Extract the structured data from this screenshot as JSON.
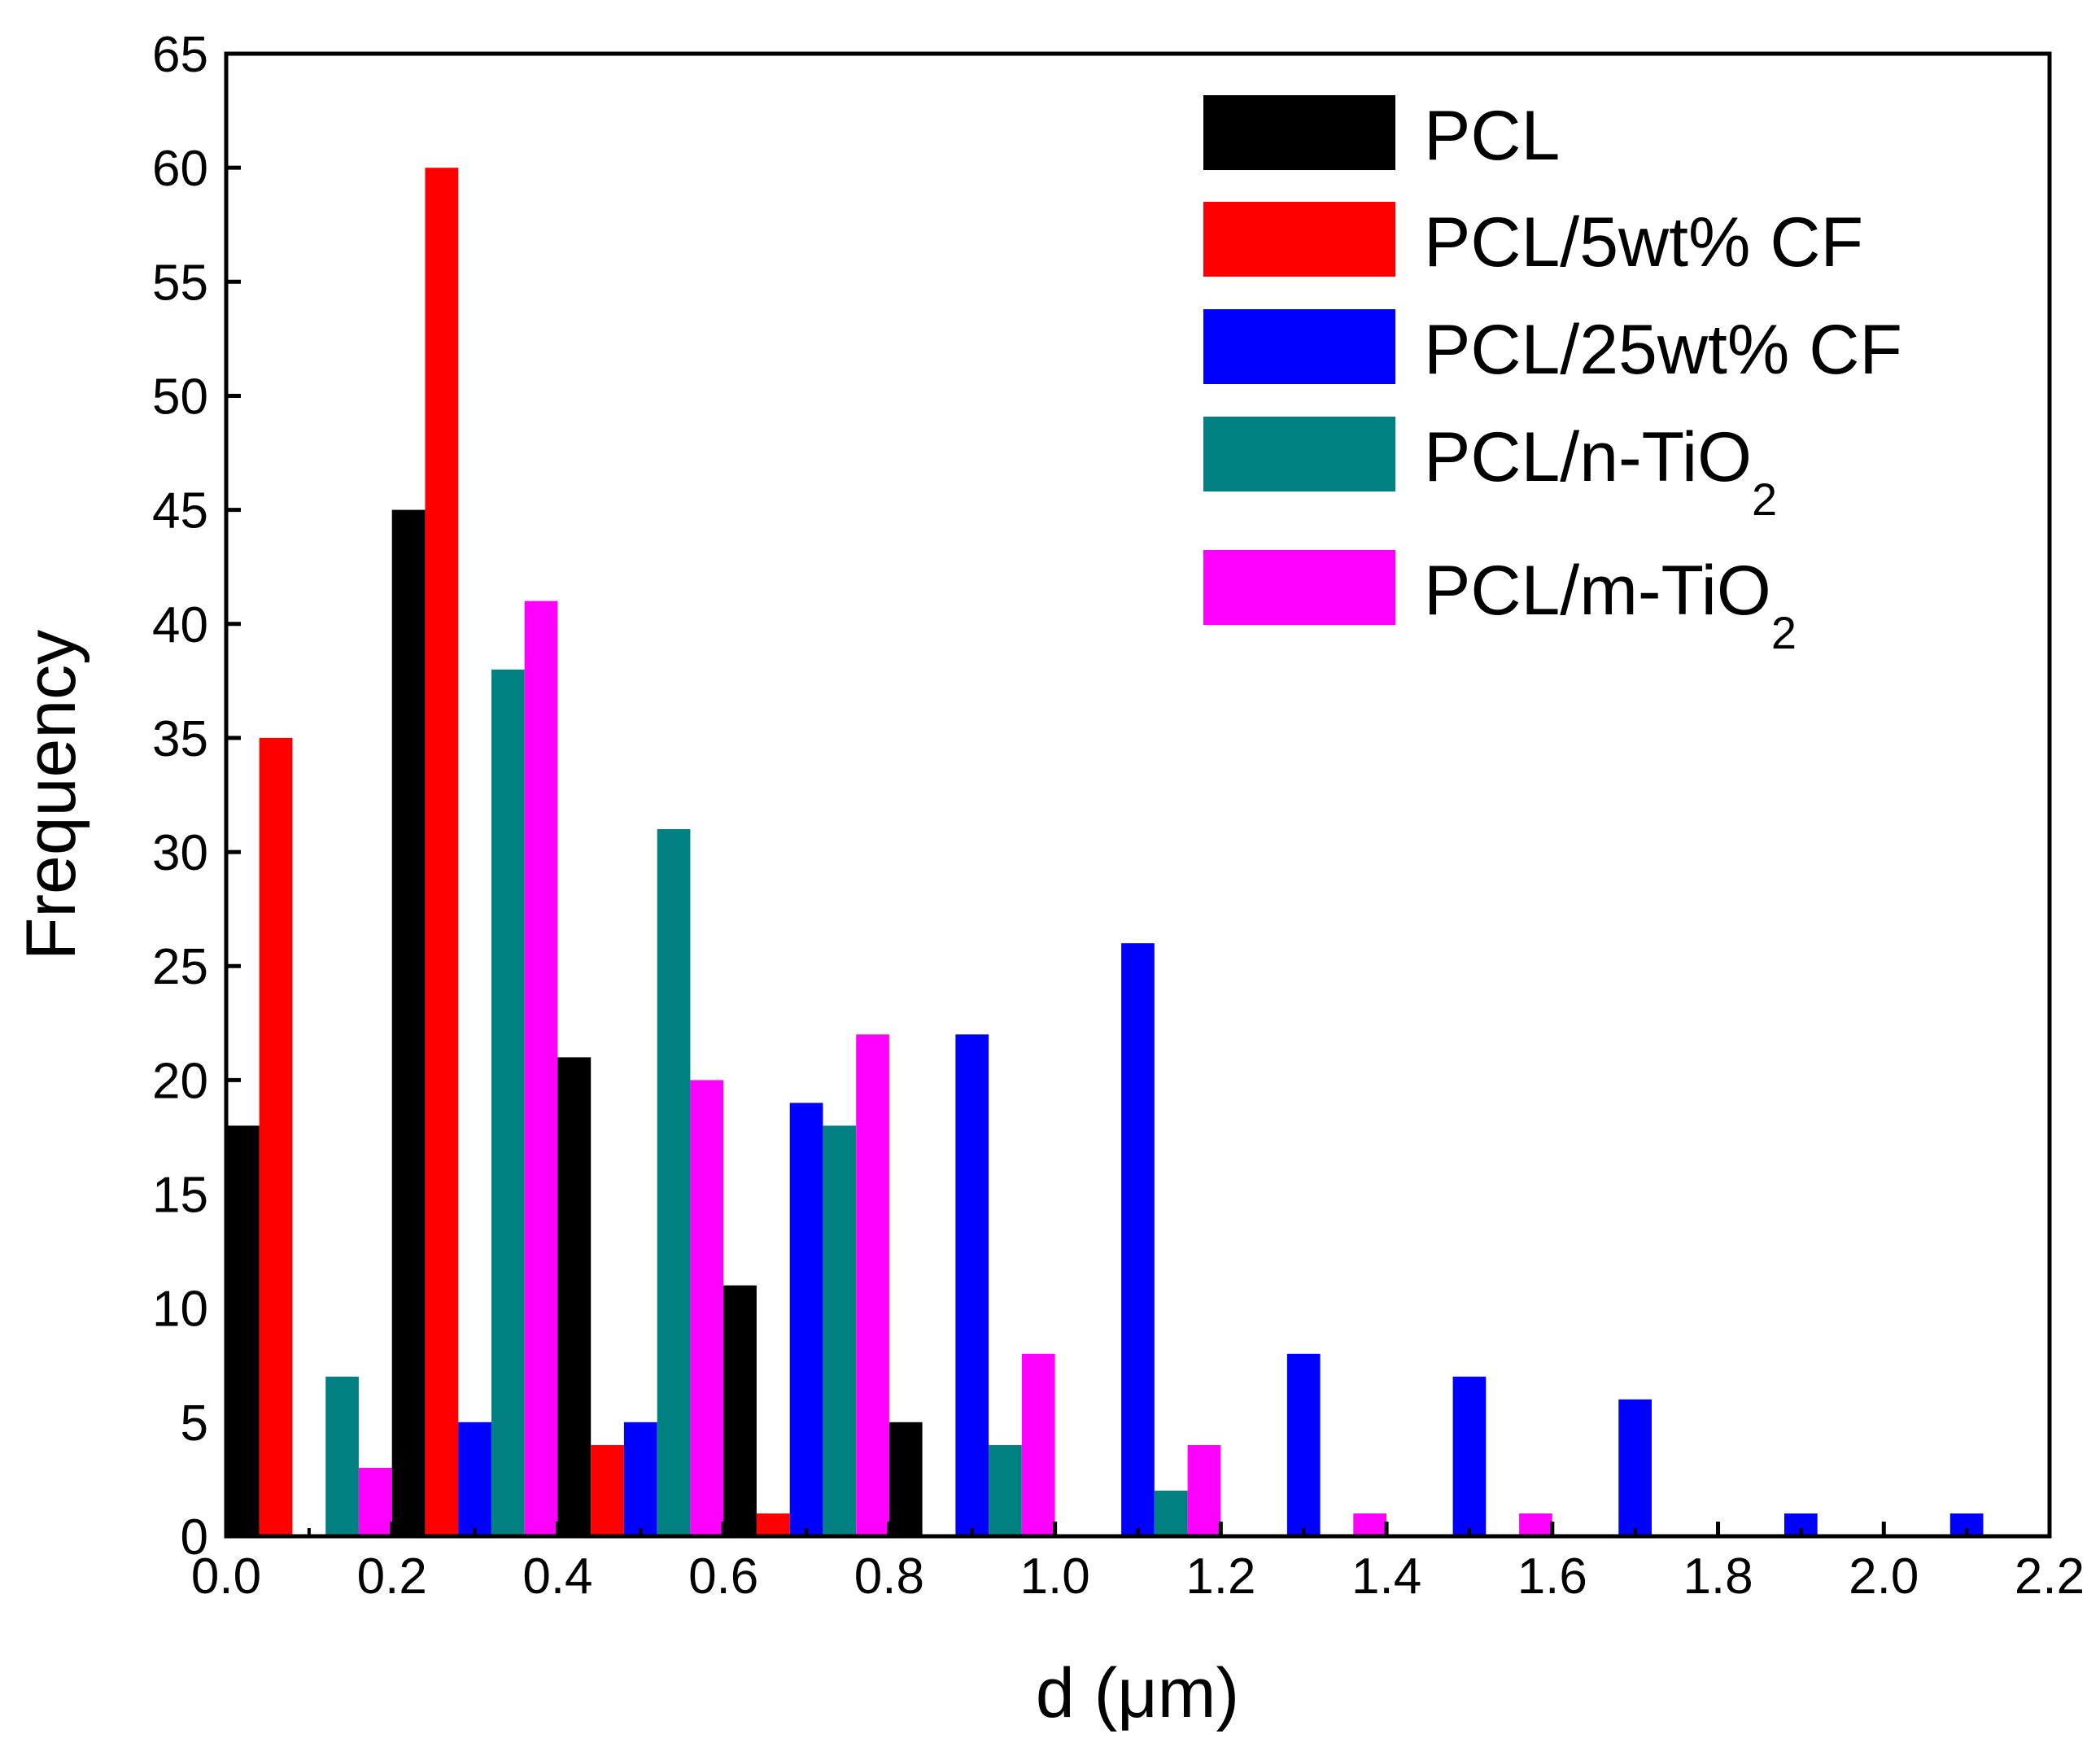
{
  "chart_data": {
    "type": "bar",
    "title": "",
    "xlabel": "d (μm)",
    "ylabel": "Frequency",
    "xlim": [
      0.0,
      2.2
    ],
    "ylim": [
      0,
      65
    ],
    "xticks": [
      "0.0",
      "0.2",
      "0.4",
      "0.6",
      "0.8",
      "1.0",
      "1.2",
      "1.4",
      "1.6",
      "1.8",
      "2.0",
      "2.2"
    ],
    "yticks": [
      "0",
      "5",
      "10",
      "15",
      "20",
      "25",
      "30",
      "35",
      "40",
      "45",
      "50",
      "55",
      "60",
      "65"
    ],
    "bin_width": 0.2,
    "bin_starts": [
      0.0,
      0.2,
      0.4,
      0.6,
      0.8,
      1.0,
      1.2,
      1.4,
      1.6,
      1.8,
      2.0
    ],
    "legend_position": "top-right",
    "series": [
      {
        "name": "PCL",
        "label_main": "PCL",
        "label_sub": "",
        "color": "#000000",
        "values": [
          18,
          45,
          21,
          11,
          5,
          0,
          0,
          0,
          0,
          0,
          0
        ]
      },
      {
        "name": "PCL/5wt% CF",
        "label_main": "PCL/5wt% CF",
        "label_sub": "",
        "color": "#ff0000",
        "values": [
          35,
          60,
          4,
          1,
          0,
          0,
          0,
          0,
          0,
          0,
          0
        ]
      },
      {
        "name": "PCL/25wt% CF",
        "label_main": "PCL/25wt% CF",
        "label_sub": "",
        "color": "#0000ff",
        "values": [
          0,
          5,
          5,
          19,
          22,
          26,
          8,
          7,
          6,
          1,
          1
        ]
      },
      {
        "name": "PCL/n-TiO2",
        "label_main": "PCL/n-TiO",
        "label_sub": "2",
        "color": "#008080",
        "values": [
          7,
          38,
          31,
          18,
          4,
          2,
          0,
          0,
          0,
          0,
          0
        ]
      },
      {
        "name": "PCL/m-TiO2",
        "label_main": "PCL/m-TiO",
        "label_sub": "2",
        "color": "#ff00ff",
        "values": [
          3,
          41,
          20,
          22,
          8,
          4,
          1,
          1,
          0,
          0,
          0
        ]
      }
    ]
  }
}
